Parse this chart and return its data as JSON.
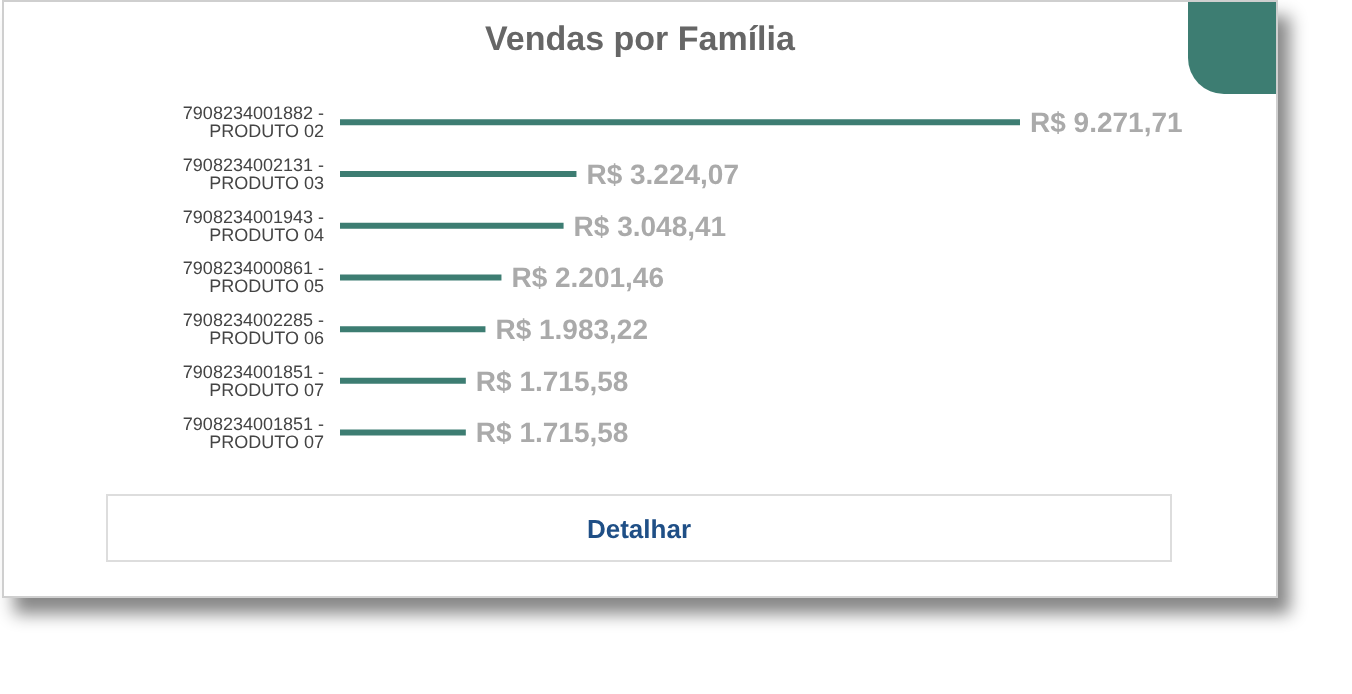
{
  "chart_data": {
    "type": "bar",
    "orientation": "horizontal",
    "title": "Vendas por Família",
    "categories": [
      "7908234001882 - PRODUTO 02",
      "7908234002131 - PRODUTO 03",
      "7908234001943 - PRODUTO 04",
      "7908234000861 - PRODUTO 05",
      "7908234002285 - PRODUTO 06",
      "7908234001851 - PRODUTO 07",
      "7908234001851 - PRODUTO 07"
    ],
    "values": [
      9271.71,
      3224.07,
      3048.41,
      2201.46,
      1983.22,
      1715.58,
      1715.58
    ],
    "value_labels": [
      "R$ 9.271,71",
      "R$ 3.224,07",
      "R$ 3.048,41",
      "R$ 2.201,46",
      "R$ 1.983,22",
      "R$ 1.715,58",
      "R$ 1.715,58"
    ],
    "color": "#3d7d72",
    "tick_labels": "y",
    "annotations": [
      "Detalhar"
    ]
  }
}
